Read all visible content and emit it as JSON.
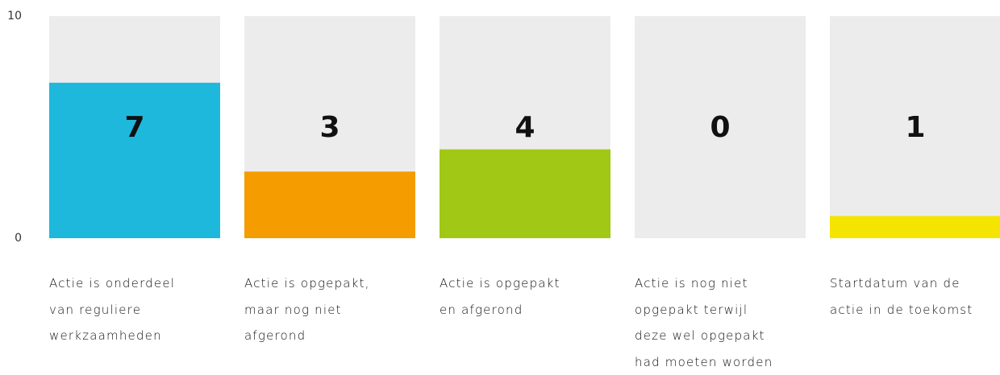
{
  "chart_data": {
    "type": "bar",
    "categories": [
      "Actie is onderdeel\nvan reguliere\nwerkzaamheden",
      "Actie is opgepakt,\nmaar nog niet\nafgerond",
      "Actie is opgepakt\nen afgerond",
      "Actie is nog niet\nopgepakt terwijl\ndeze wel opgepakt\nhad moeten worden",
      "Startdatum van de\nactie in de toekomst"
    ],
    "values": [
      7,
      3,
      4,
      0,
      1
    ],
    "colors": [
      "#1fb8dd",
      "#f49c00",
      "#a0c815",
      null,
      "#f5e400"
    ],
    "background_color": "#ececec",
    "ylim": [
      0,
      10
    ],
    "yticks": [
      0,
      10
    ]
  }
}
